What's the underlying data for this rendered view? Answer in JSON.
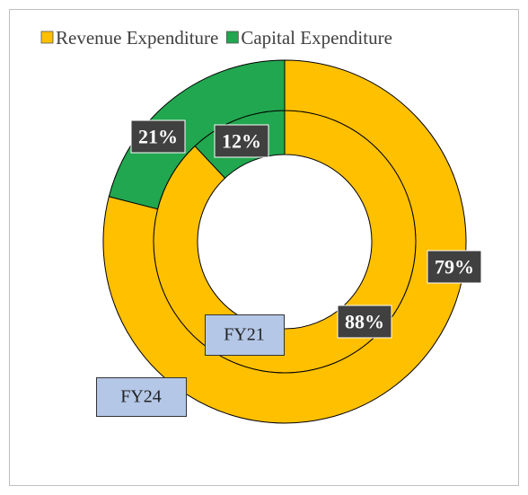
{
  "chart_data": {
    "type": "donut",
    "categories": [
      "Revenue Expenditure",
      "Capital Expenditure"
    ],
    "colors": [
      "#FFC000",
      "#21A74F"
    ],
    "series": [
      {
        "name": "FY21",
        "values": [
          88,
          12
        ],
        "value_labels": [
          "88%",
          "12%"
        ]
      },
      {
        "name": "FY24",
        "values": [
          79,
          21
        ],
        "value_labels": [
          "79%",
          "21%"
        ]
      }
    ],
    "legend": "top"
  }
}
